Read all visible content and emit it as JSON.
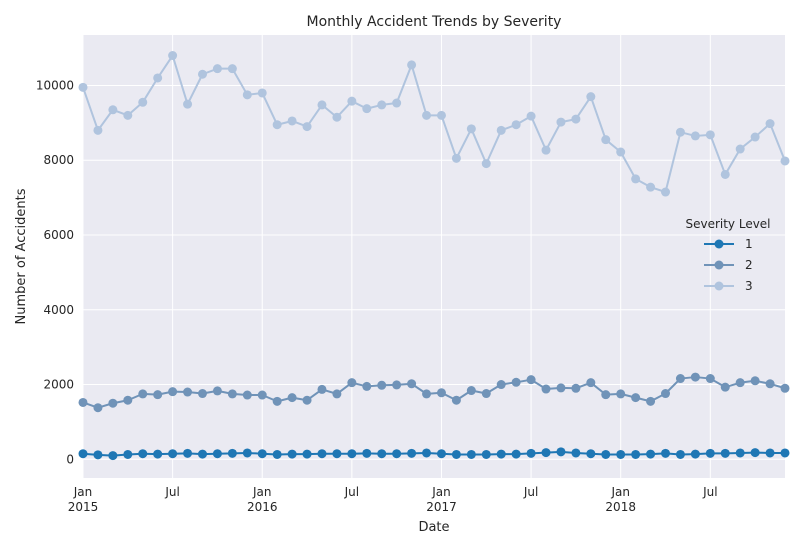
{
  "chart_data": {
    "type": "line",
    "title": "Monthly Accident Trends by Severity",
    "xlabel": "Date",
    "ylabel": "Number of Accidents",
    "x": [
      "2015-01",
      "2015-02",
      "2015-03",
      "2015-04",
      "2015-05",
      "2015-06",
      "2015-07",
      "2015-08",
      "2015-09",
      "2015-10",
      "2015-11",
      "2015-12",
      "2016-01",
      "2016-02",
      "2016-03",
      "2016-04",
      "2016-05",
      "2016-06",
      "2016-07",
      "2016-08",
      "2016-09",
      "2016-10",
      "2016-11",
      "2016-12",
      "2017-01",
      "2017-02",
      "2017-03",
      "2017-04",
      "2017-05",
      "2017-06",
      "2017-07",
      "2017-08",
      "2017-09",
      "2017-10",
      "2017-11",
      "2017-12",
      "2018-01",
      "2018-02",
      "2018-03",
      "2018-04",
      "2018-05",
      "2018-06",
      "2018-07",
      "2018-08",
      "2018-09",
      "2018-10",
      "2018-11",
      "2018-12"
    ],
    "xticks": [
      {
        "date": "2015-01",
        "label": "Jan",
        "sublabel": "2015"
      },
      {
        "date": "2015-07",
        "label": "Jul",
        "sublabel": ""
      },
      {
        "date": "2016-01",
        "label": "Jan",
        "sublabel": "2016"
      },
      {
        "date": "2016-07",
        "label": "Jul",
        "sublabel": ""
      },
      {
        "date": "2017-01",
        "label": "Jan",
        "sublabel": "2017"
      },
      {
        "date": "2017-07",
        "label": "Jul",
        "sublabel": ""
      },
      {
        "date": "2018-01",
        "label": "Jan",
        "sublabel": "2018"
      },
      {
        "date": "2018-07",
        "label": "Jul",
        "sublabel": ""
      }
    ],
    "yticks": [
      0,
      2000,
      4000,
      6000,
      8000,
      10000
    ],
    "ylim": [
      -500,
      11350
    ],
    "grid": true,
    "legend": {
      "title": "Severity Level",
      "placement": "right"
    },
    "series": [
      {
        "name": "1",
        "color": "#1f77b4",
        "values": [
          150,
          120,
          100,
          130,
          150,
          140,
          150,
          160,
          140,
          150,
          160,
          170,
          150,
          130,
          140,
          140,
          150,
          150,
          150,
          160,
          150,
          150,
          160,
          170,
          150,
          130,
          130,
          130,
          140,
          140,
          160,
          180,
          200,
          170,
          150,
          130,
          130,
          130,
          140,
          160,
          130,
          140,
          160,
          160,
          170,
          180,
          170,
          170
        ]
      },
      {
        "name": "2",
        "color": "#7093b8",
        "values": [
          1520,
          1380,
          1500,
          1580,
          1750,
          1730,
          1810,
          1800,
          1760,
          1830,
          1750,
          1720,
          1720,
          1550,
          1650,
          1580,
          1870,
          1750,
          2050,
          1950,
          1980,
          1990,
          2020,
          1750,
          1780,
          1580,
          1840,
          1760,
          2000,
          2060,
          2130,
          1880,
          1910,
          1900,
          2050,
          1730,
          1750,
          1650,
          1550,
          1760,
          2160,
          2200,
          2160,
          1930,
          2050,
          2100,
          2020,
          1900
        ]
      },
      {
        "name": "3",
        "color": "#b0c4de",
        "values": [
          9950,
          8800,
          9350,
          9200,
          9550,
          10200,
          10800,
          9500,
          10300,
          10450,
          10450,
          9750,
          9800,
          8950,
          9050,
          8900,
          9480,
          9150,
          9580,
          9380,
          9480,
          9530,
          10550,
          9200,
          9200,
          8050,
          8840,
          7910,
          8800,
          8950,
          9180,
          8270,
          9020,
          9100,
          9700,
          8550,
          8220,
          7500,
          7280,
          7150,
          8750,
          8650,
          8680,
          7620,
          8300,
          8620,
          8980,
          7980
        ]
      }
    ]
  }
}
